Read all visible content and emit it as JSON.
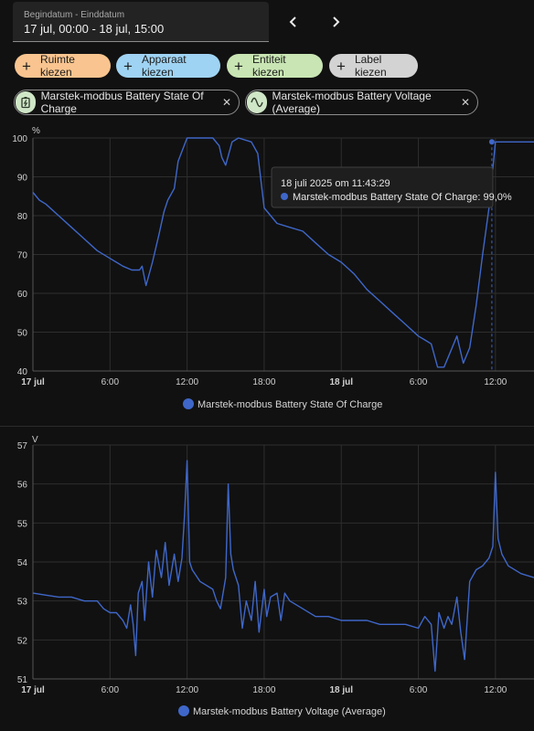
{
  "date_range": {
    "label": "Begindatum - Einddatum",
    "value": "17 jul, 00:00 - 18 jul, 15:00"
  },
  "nav": {
    "prev_icon": "chevron-left-icon",
    "next_icon": "chevron-right-icon"
  },
  "filters": [
    {
      "label": "Ruimte kiezen",
      "color": "#f9c48f"
    },
    {
      "label": "Apparaat kiezen",
      "color": "#9fd3f3"
    },
    {
      "label": "Entiteit kiezen",
      "color": "#c8e5b3"
    },
    {
      "label": "Label kiezen",
      "color": "#d3d3d3"
    }
  ],
  "selected": [
    {
      "label": "Marstek-modbus Battery State Of Charge",
      "icon": "battery-charging-icon"
    },
    {
      "label": "Marstek-modbus Battery Voltage (Average)",
      "icon": "sine-wave-icon"
    }
  ],
  "colors": {
    "series": "#3f67c9"
  },
  "tooltip": {
    "title": "18 juli 2025 om 11:43:29",
    "text": "Marstek-modbus Battery State Of Charge: 99,0%"
  },
  "chart_data": [
    {
      "type": "line",
      "unit": "%",
      "ylim": [
        40,
        100
      ],
      "yticks": [
        40,
        50,
        60,
        70,
        80,
        90,
        100
      ],
      "xlim": [
        0,
        39
      ],
      "xticks": [
        {
          "h": 0,
          "label": "17 jul",
          "bold": true
        },
        {
          "h": 6,
          "label": "6:00",
          "bold": false
        },
        {
          "h": 12,
          "label": "12:00",
          "bold": false
        },
        {
          "h": 18,
          "label": "18:00",
          "bold": false
        },
        {
          "h": 24,
          "label": "18 jul",
          "bold": true
        },
        {
          "h": 30,
          "label": "6:00",
          "bold": false
        },
        {
          "h": 36,
          "label": "12:00",
          "bold": false
        }
      ],
      "series": [
        {
          "name": "Marstek-modbus Battery State Of Charge",
          "x": [
            0,
            0.5,
            1,
            2,
            3,
            4,
            5,
            6,
            6.5,
            7,
            7.7,
            8,
            8.3,
            8.5,
            8.8,
            9.3,
            9.8,
            10.2,
            10.5,
            11,
            11.3,
            12,
            13,
            14,
            14.5,
            14.7,
            15,
            15.5,
            16,
            17,
            17.5,
            18,
            19,
            20,
            21,
            22,
            23,
            24,
            25,
            26,
            27,
            28,
            29,
            30,
            30.5,
            31,
            31.5,
            32,
            32.5,
            33,
            33.5,
            34,
            34.5,
            35,
            35.5,
            36,
            37,
            38,
            39
          ],
          "y": [
            86,
            84,
            83,
            80,
            77,
            74,
            71,
            69,
            68,
            67,
            66,
            66,
            66,
            67,
            62,
            68,
            75,
            81,
            84,
            87,
            94,
            100,
            100,
            100,
            98,
            95,
            93,
            99,
            100,
            99,
            96,
            82,
            78,
            77,
            76,
            73,
            70,
            68,
            65,
            61,
            58,
            55,
            52,
            49,
            48,
            47,
            41,
            41,
            45,
            49,
            42,
            46,
            57,
            70,
            82,
            99,
            99,
            99,
            99
          ]
        }
      ],
      "marker": {
        "x": 35.72,
        "y": 99
      }
    },
    {
      "type": "line",
      "unit": "V",
      "ylim": [
        51,
        57
      ],
      "yticks": [
        51,
        52,
        53,
        54,
        55,
        56,
        57
      ],
      "xlim": [
        0,
        39
      ],
      "xticks": [
        {
          "h": 0,
          "label": "17 jul",
          "bold": true
        },
        {
          "h": 6,
          "label": "6:00",
          "bold": false
        },
        {
          "h": 12,
          "label": "12:00",
          "bold": false
        },
        {
          "h": 18,
          "label": "18:00",
          "bold": false
        },
        {
          "h": 24,
          "label": "18 jul",
          "bold": true
        },
        {
          "h": 30,
          "label": "6:00",
          "bold": false
        },
        {
          "h": 36,
          "label": "12:00",
          "bold": false
        }
      ],
      "series": [
        {
          "name": "Marstek-modbus Battery Voltage (Average)",
          "x": [
            0,
            1,
            2,
            3,
            4,
            5,
            5.5,
            6,
            6.5,
            7,
            7.3,
            7.6,
            7.8,
            8,
            8.2,
            8.5,
            8.7,
            9,
            9.3,
            9.6,
            10,
            10.3,
            10.6,
            11,
            11.3,
            11.6,
            11.8,
            12,
            12.2,
            12.4,
            13,
            14,
            14.3,
            14.6,
            15,
            15.2,
            15.4,
            15.6,
            16,
            16.3,
            16.6,
            17,
            17.3,
            17.6,
            18,
            18.2,
            18.5,
            19,
            19.3,
            19.6,
            20,
            21,
            22,
            23,
            24,
            25,
            26,
            27,
            28,
            29,
            30,
            30.5,
            31,
            31.3,
            31.6,
            32,
            32.3,
            32.6,
            33,
            33.3,
            33.6,
            34,
            34.5,
            35,
            35.5,
            35.8,
            36,
            36.2,
            36.5,
            37,
            38,
            39
          ],
          "y": [
            53.2,
            53.15,
            53.1,
            53.1,
            53.0,
            53.0,
            52.8,
            52.7,
            52.7,
            52.5,
            52.3,
            52.9,
            52.4,
            51.6,
            53.2,
            53.5,
            52.5,
            54.0,
            53.1,
            54.3,
            53.6,
            54.5,
            53.4,
            54.2,
            53.5,
            54.1,
            55.2,
            56.6,
            54.0,
            53.8,
            53.5,
            53.3,
            53.0,
            52.8,
            53.6,
            56.0,
            54.2,
            53.8,
            53.4,
            52.3,
            53.0,
            52.5,
            53.5,
            52.2,
            53.3,
            52.6,
            53.1,
            53.2,
            52.5,
            53.2,
            53.0,
            52.8,
            52.6,
            52.6,
            52.5,
            52.5,
            52.5,
            52.4,
            52.4,
            52.4,
            52.3,
            52.6,
            52.4,
            51.2,
            52.7,
            52.3,
            52.6,
            52.4,
            53.1,
            52.2,
            51.5,
            53.5,
            53.8,
            53.9,
            54.1,
            54.4,
            56.3,
            54.6,
            54.2,
            53.9,
            53.7,
            53.6
          ]
        }
      ]
    }
  ]
}
